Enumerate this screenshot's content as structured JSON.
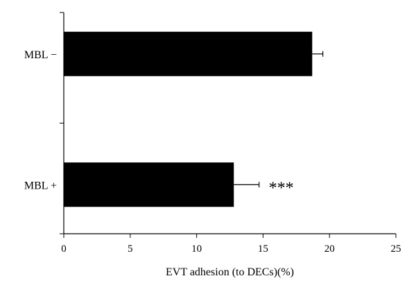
{
  "chart_data": {
    "type": "bar",
    "orientation": "horizontal",
    "categories": [
      "MBL −",
      "MBL +"
    ],
    "values": [
      18.7,
      12.8
    ],
    "errors": [
      0.8,
      1.9
    ],
    "annotations": [
      "",
      "***"
    ],
    "xlabel": "EVT adhesion (to DECs)(%)",
    "xlim": [
      0,
      25
    ],
    "xticks": [
      0,
      5,
      10,
      15,
      20,
      25
    ],
    "bar_color": "#000000",
    "grid": false,
    "legend": "none"
  }
}
